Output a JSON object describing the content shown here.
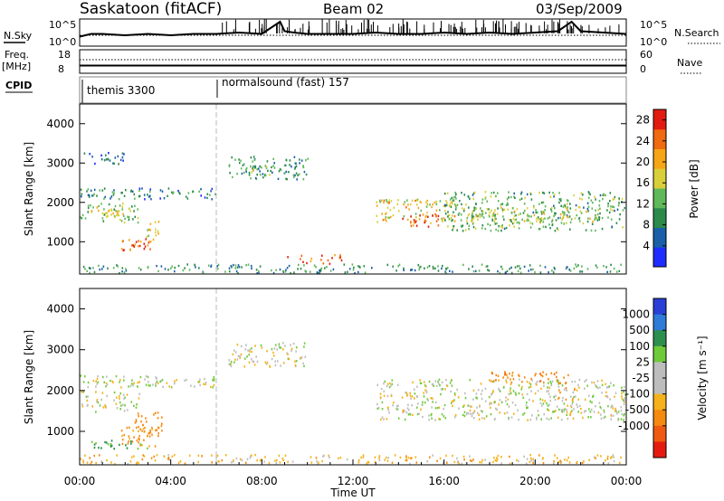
{
  "header": {
    "title": "Saskatoon (fitACF)",
    "beam": "Beam 02",
    "date": "03/Sep/2009"
  },
  "summary_panels": {
    "nsky": {
      "label": "N.Sky",
      "tick_top": "10^5",
      "tick_bottom": "10^0",
      "right_tick_top": "10^5",
      "right_tick_bottom": "10^0",
      "right_label": "N.Search"
    },
    "freq": {
      "label_line1": "Freq.",
      "label_line2": "[MHz]",
      "tick_top": "18",
      "tick_bottom": "8",
      "right_tick_top": "60",
      "right_tick_bottom": "0",
      "right_label": "Nave"
    },
    "cpid": {
      "label": "CPID",
      "modes": [
        {
          "name": "themis 3300",
          "start_hour": 0
        },
        {
          "name": "normalsound (fast) 157",
          "start_hour": 6
        }
      ]
    }
  },
  "colors": {
    "power_scale": [
      "#1f2cff",
      "#1a5fa8",
      "#2b8a4a",
      "#5fb85a",
      "#d9cf3a",
      "#f5a516",
      "#f06a10",
      "#e21b10"
    ],
    "velocity_scale": [
      "#2a3fd6",
      "#2f7bd8",
      "#2d8f4e",
      "#6fca3a",
      "#bdbdbd",
      "#bdbdbd",
      "#f5b21a",
      "#f58a10",
      "#f05a10",
      "#e61b10"
    ]
  },
  "chart_data": [
    {
      "type": "heatmap",
      "name": "power",
      "ylabel": "Slant Range [km]",
      "ylim": [
        180,
        4500
      ],
      "yticks": [
        "1000",
        "2000",
        "3000",
        "4000"
      ],
      "xlim": [
        0,
        24
      ],
      "colorbar": {
        "label": "Power [dB]",
        "ticks": [
          "4",
          "8",
          "12",
          "16",
          "20",
          "24",
          "28"
        ],
        "range": [
          0,
          30
        ]
      },
      "regions": [
        {
          "t0": 0.0,
          "t1": 2.6,
          "r0": 1500,
          "r1": 2000,
          "value": 14
        },
        {
          "t0": 0.3,
          "t1": 2.0,
          "r0": 1650,
          "r1": 1850,
          "value": 20
        },
        {
          "t0": 1.8,
          "t1": 3.3,
          "r0": 800,
          "r1": 1150,
          "value": 24
        },
        {
          "t0": 2.3,
          "t1": 3.0,
          "r0": 850,
          "r1": 1000,
          "value": 28
        },
        {
          "t0": 2.8,
          "t1": 3.5,
          "r0": 1150,
          "r1": 1550,
          "value": 16
        },
        {
          "t0": 0.0,
          "t1": 24.0,
          "r0": 200,
          "r1": 450,
          "value": 10
        },
        {
          "t0": 9.0,
          "t1": 11.5,
          "r0": 450,
          "r1": 700,
          "value": 26
        },
        {
          "t0": 6.5,
          "t1": 10.0,
          "r0": 2600,
          "r1": 3200,
          "value": 10
        },
        {
          "t0": 7.0,
          "t1": 8.5,
          "r0": 2700,
          "r1": 3000,
          "value": 14
        },
        {
          "t0": 13.0,
          "t1": 16.5,
          "r0": 1500,
          "r1": 2100,
          "value": 18
        },
        {
          "t0": 14.0,
          "t1": 16.0,
          "r0": 1400,
          "r1": 1700,
          "value": 24
        },
        {
          "t0": 16.0,
          "t1": 24.0,
          "r0": 1300,
          "r1": 2300,
          "value": 12
        },
        {
          "t0": 17.0,
          "t1": 23.0,
          "r0": 1500,
          "r1": 1900,
          "value": 16
        },
        {
          "t0": 0.0,
          "t1": 6.0,
          "r0": 2100,
          "r1": 2400,
          "value": 8
        },
        {
          "t0": 0.0,
          "t1": 2.0,
          "r0": 3000,
          "r1": 3300,
          "value": 6
        }
      ]
    },
    {
      "type": "heatmap",
      "name": "velocity",
      "ylabel": "Slant Range [km]",
      "xlabel": "Time UT",
      "ylim": [
        180,
        4500
      ],
      "yticks": [
        "1000",
        "2000",
        "3000",
        "4000"
      ],
      "xlim": [
        0,
        24
      ],
      "xticks": [
        "00:00",
        "04:00",
        "08:00",
        "12:00",
        "16:00",
        "20:00",
        "00:00"
      ],
      "colorbar": {
        "label": "Velocity [m s⁻¹]",
        "ticks": [
          "1000",
          "500",
          "100",
          "25",
          "-25",
          "-100",
          "-500",
          "-1000"
        ]
      },
      "regions": [
        {
          "t0": 0.0,
          "t1": 2.6,
          "r0": 1500,
          "r1": 2000,
          "value": 0
        },
        {
          "t0": 1.8,
          "t1": 3.3,
          "r0": 650,
          "r1": 1150,
          "value": -120
        },
        {
          "t0": 2.4,
          "t1": 3.6,
          "r0": 800,
          "r1": 1500,
          "value": -300
        },
        {
          "t0": 0.5,
          "t1": 3.0,
          "r0": 600,
          "r1": 800,
          "value": 120
        },
        {
          "t0": 0.0,
          "t1": 24.0,
          "r0": 200,
          "r1": 450,
          "value": -60
        },
        {
          "t0": 6.5,
          "t1": 10.0,
          "r0": 2600,
          "r1": 3200,
          "value": 0
        },
        {
          "t0": 13.0,
          "t1": 24.0,
          "r0": 1300,
          "r1": 2300,
          "value": 0
        },
        {
          "t0": 18.0,
          "t1": 21.5,
          "r0": 2200,
          "r1": 2500,
          "value": -450
        },
        {
          "t0": 21.0,
          "t1": 21.7,
          "r0": 1800,
          "r1": 2100,
          "value": -250
        },
        {
          "t0": 0.0,
          "t1": 6.0,
          "r0": 2100,
          "r1": 2400,
          "value": 0
        }
      ]
    },
    {
      "type": "line",
      "name": "n_sky_trace",
      "x": [
        0,
        0.5,
        1,
        2,
        3,
        4,
        5,
        6,
        7,
        8,
        8.8,
        9,
        9.4,
        10,
        11,
        12,
        13,
        14,
        15,
        16,
        17,
        18,
        19,
        20,
        21,
        21.6,
        22,
        23,
        24
      ],
      "values": [
        0.35,
        0.45,
        0.45,
        0.4,
        0.45,
        0.4,
        0.45,
        0.45,
        0.5,
        0.45,
        0.9,
        0.55,
        0.5,
        0.45,
        0.45,
        0.45,
        0.5,
        0.45,
        0.45,
        0.5,
        0.45,
        0.5,
        0.45,
        0.5,
        0.55,
        0.9,
        0.55,
        0.5,
        0.45
      ]
    }
  ]
}
